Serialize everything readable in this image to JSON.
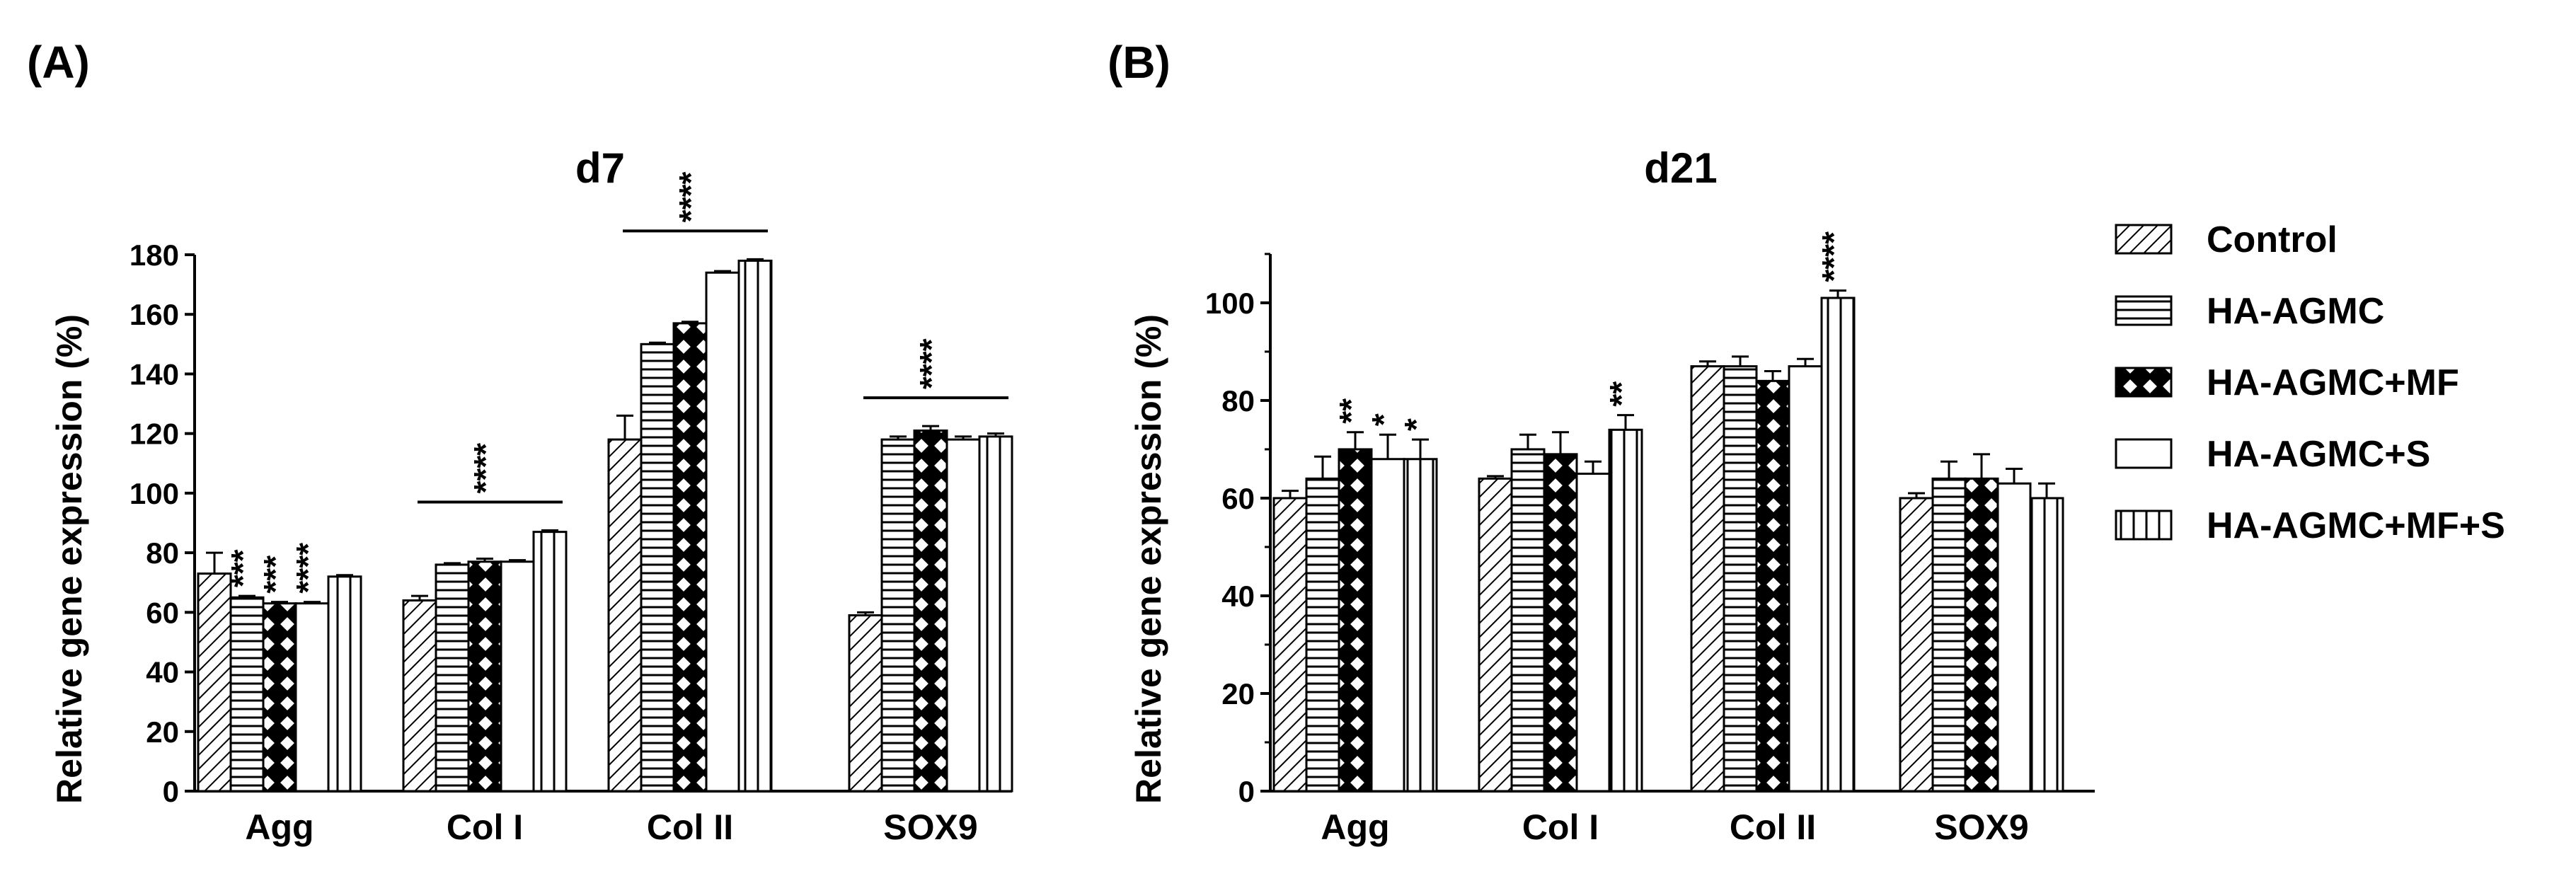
{
  "panel_labels": [
    "(A)",
    "(B)"
  ],
  "legend": {
    "entries": [
      {
        "label": "Control",
        "pattern": "diagonal"
      },
      {
        "label": "HA-AGMC",
        "pattern": "horizontal"
      },
      {
        "label": "HA-AGMC+MF",
        "pattern": "checker"
      },
      {
        "label": "HA-AGMC+S",
        "pattern": "white"
      },
      {
        "label": "HA-AGMC+MF+S",
        "pattern": "vertical"
      }
    ]
  },
  "chart_data": [
    {
      "type": "bar",
      "panel": "(A)",
      "title": "d7",
      "xlabel": "",
      "ylabel": "Relative gene expression (%)",
      "ylim": [
        0,
        180
      ],
      "yticks": [
        0,
        20,
        40,
        60,
        80,
        100,
        120,
        140,
        160,
        180
      ],
      "categories": [
        "Agg",
        "Col I",
        "Col II",
        "SOX9"
      ],
      "series": [
        {
          "name": "Control",
          "values": [
            73,
            64,
            118,
            59
          ],
          "errors": [
            7,
            1.5,
            8,
            1
          ]
        },
        {
          "name": "HA-AGMC",
          "values": [
            65,
            76,
            150,
            118
          ],
          "errors": [
            0.5,
            0.5,
            0.5,
            1
          ]
        },
        {
          "name": "HA-AGMC+MF",
          "values": [
            63,
            77,
            157,
            121
          ],
          "errors": [
            0.5,
            1,
            0.5,
            1.5
          ]
        },
        {
          "name": "HA-AGMC+S",
          "values": [
            63,
            77,
            174,
            118
          ],
          "errors": [
            0.5,
            0.5,
            0.5,
            1
          ]
        },
        {
          "name": "HA-AGMC+MF+S",
          "values": [
            72,
            87,
            178,
            119
          ],
          "errors": [
            0.5,
            0.5,
            0.5,
            1
          ]
        }
      ],
      "annotations": [
        {
          "category": "Agg",
          "series": 1,
          "text": "***"
        },
        {
          "category": "Agg",
          "series": 2,
          "text": "***"
        },
        {
          "category": "Agg",
          "series": 3,
          "text": "****"
        }
      ],
      "group_annotations": [
        {
          "category": "Col I",
          "text": "****"
        },
        {
          "category": "Col II",
          "text": "****"
        },
        {
          "category": "SOX9",
          "text": "****"
        }
      ]
    },
    {
      "type": "bar",
      "panel": "(B)",
      "title": "d21",
      "xlabel": "",
      "ylabel": "Relative gene expression (%)",
      "ylim": [
        0,
        110
      ],
      "yticks": [
        0,
        20,
        40,
        60,
        80,
        100
      ],
      "categories": [
        "Agg",
        "Col I",
        "Col II",
        "SOX9"
      ],
      "series": [
        {
          "name": "Control",
          "values": [
            60,
            64,
            87,
            60
          ],
          "errors": [
            1.5,
            0.5,
            1,
            1
          ]
        },
        {
          "name": "HA-AGMC",
          "values": [
            64,
            70,
            87,
            64
          ],
          "errors": [
            4.5,
            3,
            2,
            3.5
          ]
        },
        {
          "name": "HA-AGMC+MF",
          "values": [
            70,
            69,
            84,
            64
          ],
          "errors": [
            3.5,
            4.5,
            2,
            5
          ]
        },
        {
          "name": "HA-AGMC+S",
          "values": [
            68,
            65,
            87,
            63
          ],
          "errors": [
            5,
            2.5,
            1.5,
            3
          ]
        },
        {
          "name": "HA-AGMC+MF+S",
          "values": [
            68,
            74,
            101,
            60
          ],
          "errors": [
            4,
            3,
            1.5,
            3
          ]
        }
      ],
      "annotations": [
        {
          "category": "Agg",
          "series": 2,
          "text": "**"
        },
        {
          "category": "Agg",
          "series": 3,
          "text": "*"
        },
        {
          "category": "Agg",
          "series": 4,
          "text": "*"
        },
        {
          "category": "Col I",
          "series": 4,
          "text": "**"
        },
        {
          "category": "Col II",
          "series": 4,
          "text": "****"
        }
      ],
      "group_annotations": []
    }
  ]
}
